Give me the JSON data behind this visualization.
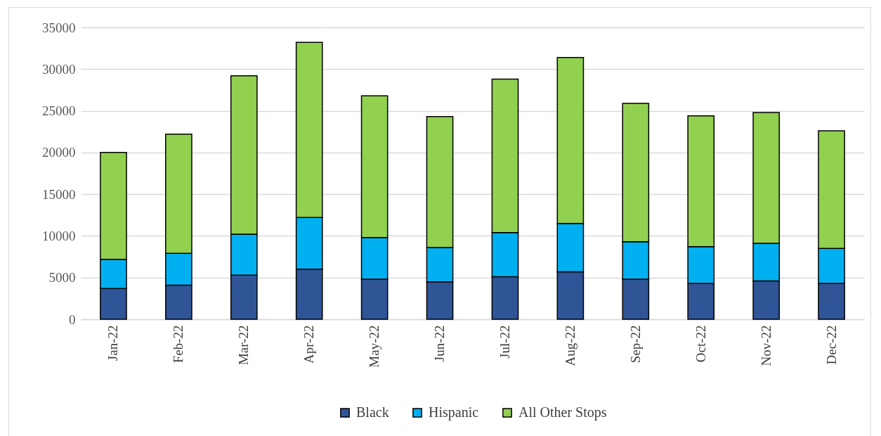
{
  "chart_data": {
    "type": "bar",
    "stacked": true,
    "categories": [
      "Jan-22",
      "Feb-22",
      "Mar-22",
      "Apr-22",
      "May-22",
      "Jun-22",
      "Jul-22",
      "Aug-22",
      "Sep-22",
      "Oct-22",
      "Nov-22",
      "Dec-22"
    ],
    "series": [
      {
        "name": "Black",
        "color": "#2f5597",
        "values": [
          3700,
          4100,
          5300,
          6000,
          4800,
          4500,
          5100,
          5700,
          4800,
          4300,
          4600,
          4300
        ]
      },
      {
        "name": "Hispanic",
        "color": "#00b0f0",
        "values": [
          3500,
          3800,
          4900,
          6200,
          5000,
          4100,
          5300,
          5800,
          4500,
          4400,
          4500,
          4200
        ]
      },
      {
        "name": "All Other Stops",
        "color": "#92d050",
        "values": [
          12800,
          14300,
          19000,
          21000,
          17000,
          15700,
          18400,
          19900,
          16600,
          15700,
          15700,
          14100
        ]
      }
    ],
    "ylim": [
      0,
      35000
    ],
    "yticks": [
      0,
      5000,
      10000,
      15000,
      20000,
      25000,
      30000,
      35000
    ],
    "grid": "y",
    "legend": "bottom"
  }
}
